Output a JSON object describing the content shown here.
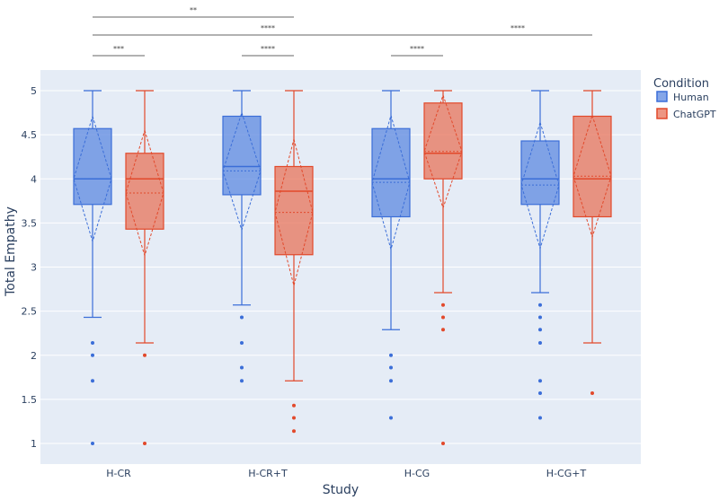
{
  "chart_data": {
    "type": "box",
    "xlabel": "Study",
    "ylabel": "Total Empathy",
    "ylim": [
      0.75,
      5.2
    ],
    "yticks": [
      1,
      1.5,
      2,
      2.5,
      3,
      3.5,
      4,
      4.5,
      5
    ],
    "ytick_labels": [
      "1",
      "1.5",
      "2",
      "2.5",
      "3",
      "3.5",
      "4",
      "4.5",
      "5"
    ],
    "categories": [
      "H-CR",
      "H-CR+T",
      "H-CG",
      "H-CG+T"
    ],
    "legend": {
      "title": "Condition",
      "entries": [
        "Human",
        "ChatGPT"
      ],
      "placement": "top-right outside"
    },
    "colors": {
      "Human_line": "#3b6ed8",
      "Human_fill": "rgba(99,141,226,0.78)",
      "ChatGPT_line": "#e2492b",
      "ChatGPT_fill": "rgba(232,120,96,0.78)",
      "plot_bg": "#e5ecf6"
    },
    "series": [
      {
        "name": "Human",
        "boxes": [
          {
            "min": 2.43,
            "q1": 3.71,
            "median": 4.0,
            "mean": 4.0,
            "q3": 4.57,
            "max": 5.0,
            "sd_low": 3.29,
            "sd_high": 4.71,
            "outliers": [
              2.14,
              2.0,
              1.71,
              1.0
            ]
          },
          {
            "min": 2.57,
            "q1": 3.82,
            "median": 4.14,
            "mean": 4.09,
            "q3": 4.71,
            "max": 5.0,
            "sd_low": 3.42,
            "sd_high": 4.75,
            "outliers": [
              2.43,
              2.14,
              1.86,
              1.71
            ]
          },
          {
            "min": 2.29,
            "q1": 3.57,
            "median": 4.0,
            "mean": 3.96,
            "q3": 4.57,
            "max": 5.0,
            "sd_low": 3.2,
            "sd_high": 4.72,
            "outliers": [
              2.0,
              1.86,
              1.71,
              1.29
            ]
          },
          {
            "min": 2.71,
            "q1": 3.71,
            "median": 4.0,
            "mean": 3.93,
            "q3": 4.43,
            "max": 5.0,
            "sd_low": 3.21,
            "sd_high": 4.64,
            "outliers": [
              2.57,
              2.43,
              2.29,
              2.14,
              1.71,
              1.57,
              1.29
            ]
          }
        ]
      },
      {
        "name": "ChatGPT",
        "boxes": [
          {
            "min": 2.14,
            "q1": 3.43,
            "median": 4.0,
            "mean": 3.84,
            "q3": 4.29,
            "max": 5.0,
            "sd_low": 3.13,
            "sd_high": 4.55,
            "outliers": [
              2.0,
              1.0
            ]
          },
          {
            "min": 1.71,
            "q1": 3.14,
            "median": 3.86,
            "mean": 3.62,
            "q3": 4.14,
            "max": 5.0,
            "sd_low": 2.79,
            "sd_high": 4.45,
            "outliers": [
              1.43,
              1.29,
              1.14
            ]
          },
          {
            "min": 2.71,
            "q1": 4.0,
            "median": 4.29,
            "mean": 4.31,
            "q3": 4.86,
            "max": 5.0,
            "sd_low": 3.67,
            "sd_high": 4.95,
            "outliers": [
              2.57,
              2.43,
              2.29,
              1.0
            ]
          },
          {
            "min": 2.14,
            "q1": 3.57,
            "median": 4.0,
            "mean": 4.03,
            "q3": 4.71,
            "max": 5.0,
            "sd_low": 3.34,
            "sd_high": 4.72,
            "outliers": [
              1.57
            ]
          }
        ]
      }
    ],
    "significance": [
      {
        "label": "**",
        "from": "H-CR:Human",
        "to": "H-CR+T:ChatGPT",
        "level": 3
      },
      {
        "label": "****",
        "from": "H-CR:Human",
        "to": "H-CG:ChatGPT",
        "level": 2
      },
      {
        "label": "****",
        "from": "H-CG:ChatGPT",
        "to": "H-CG+T:ChatGPT",
        "level": 2
      },
      {
        "label": "***",
        "from": "H-CR:Human",
        "to": "H-CR:ChatGPT",
        "level": 1
      },
      {
        "label": "****",
        "from": "H-CR+T:Human",
        "to": "H-CR+T:ChatGPT",
        "level": 1
      },
      {
        "label": "****",
        "from": "H-CG:Human",
        "to": "H-CG:ChatGPT",
        "level": 1
      }
    ]
  }
}
